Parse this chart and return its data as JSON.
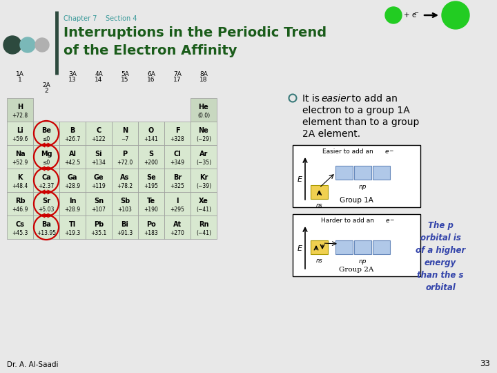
{
  "bg_color": "#e8e8e8",
  "title_color": "#1a5c1a",
  "chapter_color": "#3a9a9a",
  "chapter_text": "Chapter 7    Section 4",
  "title_line1": "Interruptions in the Periodic Trend",
  "title_line2": "of the Electron Affinity",
  "dot_colors": [
    "#2d4a3e",
    "#7ab8b8",
    "#b0b0b0"
  ],
  "divider_color": "#2d4a3e",
  "bullet_color": "#3a7a7a",
  "anno_color": "#3344aa",
  "anno_text": "The p\norbital is\nof a higher\nenergy\nthan the s\norbital",
  "footer_text": "Dr. A. Al-Saadi",
  "page_num": "33",
  "table_header_bg": "#c8d8c0",
  "table_cell_bg": "#d8e8d0",
  "table_border": "#999999",
  "circle_color": "#cc0000",
  "row_data_1A": [
    [
      "H",
      "+72.8"
    ],
    [
      "Li",
      "+59.6"
    ],
    [
      "Na",
      "+52.9"
    ],
    [
      "K",
      "+48.4"
    ],
    [
      "Rb",
      "+46.9"
    ],
    [
      "Cs",
      "+45.3"
    ]
  ],
  "row_data_2A": [
    [
      "Be",
      "≤0"
    ],
    [
      "Mg",
      "≤0"
    ],
    [
      "Ca",
      "+2.37"
    ],
    [
      "Sr",
      "+5.03"
    ],
    [
      "Ba",
      "+13.95"
    ]
  ],
  "rows_right": [
    [
      [
        "B",
        "+26.7"
      ],
      [
        "C",
        "+122"
      ],
      [
        "N",
        "−7"
      ],
      [
        "O",
        "+141"
      ],
      [
        "F",
        "+328"
      ],
      [
        "Ne",
        "(−29)"
      ]
    ],
    [
      [
        "Al",
        "+42.5"
      ],
      [
        "Si",
        "+134"
      ],
      [
        "P",
        "+72.0"
      ],
      [
        "S",
        "+200"
      ],
      [
        "Cl",
        "+349"
      ],
      [
        "Ar",
        "(−35)"
      ]
    ],
    [
      [
        "Ga",
        "+28.9"
      ],
      [
        "Ge",
        "+119"
      ],
      [
        "As",
        "+78.2"
      ],
      [
        "Se",
        "+195"
      ],
      [
        "Br",
        "+325"
      ],
      [
        "Kr",
        "(−39)"
      ]
    ],
    [
      [
        "In",
        "+28.9"
      ],
      [
        "Sn",
        "+107"
      ],
      [
        "Sb",
        "+103"
      ],
      [
        "Te",
        "+190"
      ],
      [
        "I",
        "+295"
      ],
      [
        "Xe",
        "(−41)"
      ]
    ],
    [
      [
        "Tl",
        "+19.3"
      ],
      [
        "Pb",
        "+35.1"
      ],
      [
        "Bi",
        "+91.3"
      ],
      [
        "Po",
        "+183"
      ],
      [
        "At",
        "+270"
      ],
      [
        "Rn",
        "(−41)"
      ]
    ]
  ]
}
